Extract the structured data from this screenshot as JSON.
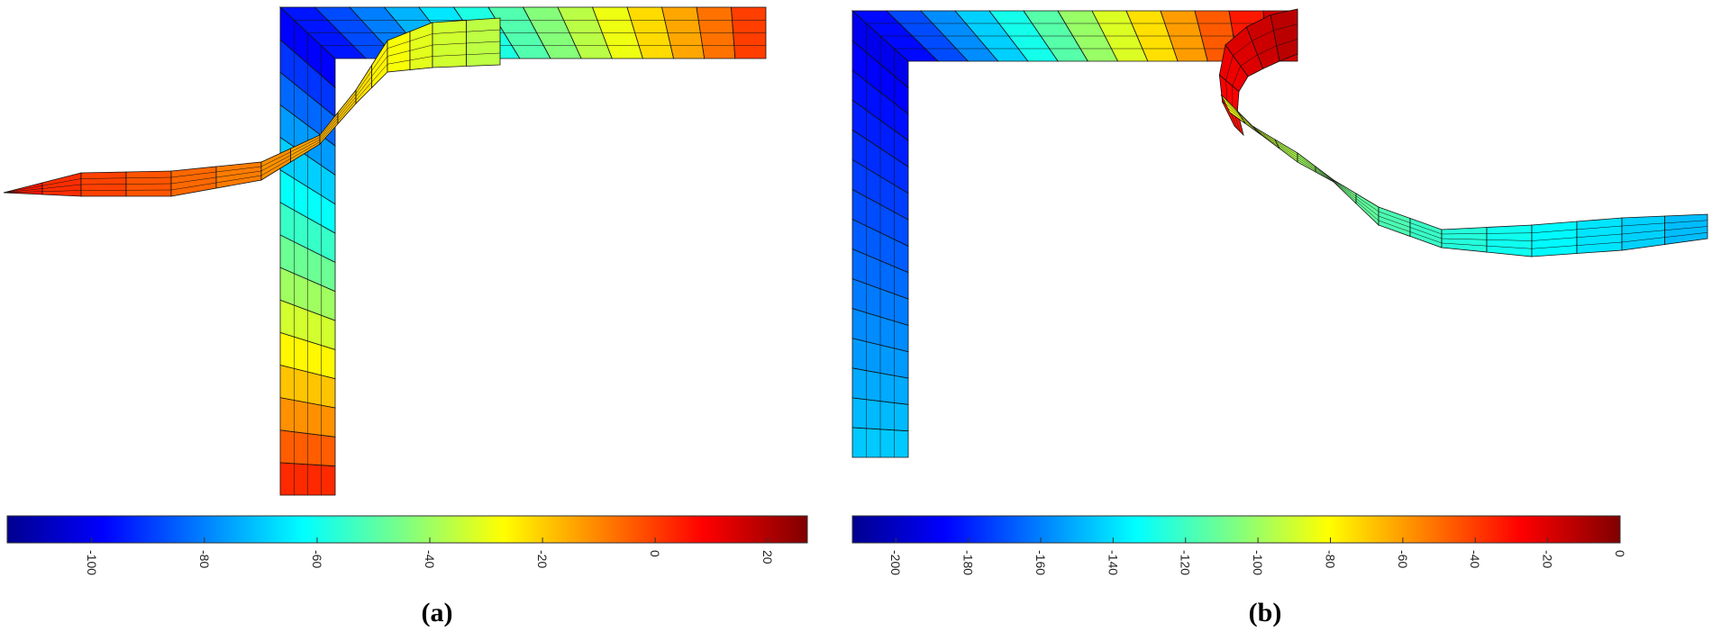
{
  "panels": [
    {
      "id": "a",
      "label": "(a)",
      "colorbar": {
        "min": -115,
        "max": 27,
        "ticks": [
          -100,
          -80,
          -60,
          -40,
          -20,
          0,
          20
        ]
      }
    },
    {
      "id": "b",
      "label": "(b)",
      "colorbar": {
        "min": -212,
        "max": 0,
        "ticks": [
          -200,
          -180,
          -160,
          -140,
          -120,
          -100,
          -80,
          -60,
          -40,
          -20,
          0
        ]
      }
    }
  ],
  "colormap": "jet"
}
